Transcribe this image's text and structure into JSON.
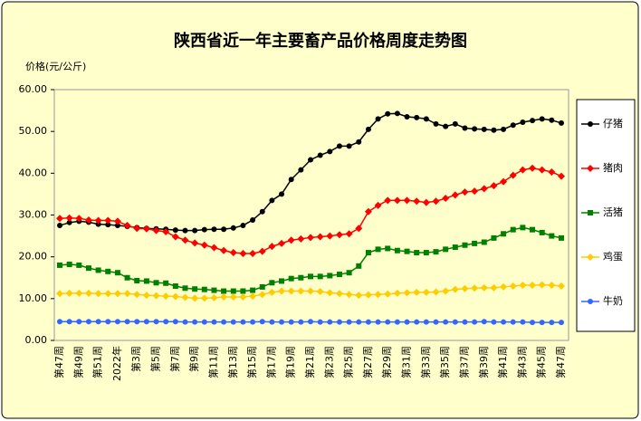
{
  "chart_data": {
    "type": "line",
    "title": "陕西省近一年主要畜产品价格周度走势图",
    "y_label": "价格(元/公斤)",
    "categories": [
      "第47周",
      null,
      "第49周",
      null,
      "第51周",
      null,
      "2022年",
      null,
      "第3周",
      null,
      "第5周",
      null,
      "第7周",
      null,
      "第9周",
      null,
      "第11周",
      null,
      "第13周",
      null,
      "第15周",
      null,
      "第17周",
      null,
      "第19周",
      null,
      "第21周",
      null,
      "第23周",
      null,
      "第25周",
      null,
      "第27周",
      null,
      "第29周",
      null,
      "第31周",
      null,
      "第33周",
      null,
      "第35周",
      null,
      "第37周",
      null,
      "第39周",
      null,
      "第41周",
      null,
      "第43周",
      null,
      "第45周",
      null,
      "第47周"
    ],
    "ylim": [
      0,
      60
    ],
    "yticks": [
      {
        "value": 0,
        "label": "0.00"
      },
      {
        "value": 10,
        "label": "10.00"
      },
      {
        "value": 20,
        "label": "20.00"
      },
      {
        "value": 30,
        "label": "30.00"
      },
      {
        "value": 40,
        "label": "40.00"
      },
      {
        "value": 50,
        "label": "50.00"
      },
      {
        "value": 60,
        "label": "60.00"
      }
    ],
    "grid": false,
    "legend": "right",
    "series": [
      {
        "name": "仔猪",
        "color": "#000000",
        "marker": "circle",
        "values": [
          27.5,
          28.2,
          28.5,
          28.3,
          27.8,
          27.7,
          27.5,
          27.3,
          27.0,
          26.8,
          26.7,
          26.6,
          26.4,
          26.3,
          26.3,
          26.5,
          26.6,
          26.6,
          26.9,
          27.5,
          28.8,
          30.8,
          33.5,
          35.0,
          38.5,
          40.8,
          43.2,
          44.3,
          45.2,
          46.5,
          46.5,
          47.5,
          50.5,
          53.0,
          54.2,
          54.3,
          53.5,
          53.3,
          53.0,
          51.8,
          51.2,
          51.8,
          50.8,
          50.6,
          50.5,
          50.3,
          50.5,
          51.5,
          52.2,
          52.6,
          53.0,
          52.7,
          52.0
        ]
      },
      {
        "name": "猪肉",
        "color": "#ff0000",
        "marker": "diamond",
        "values": [
          29.2,
          29.3,
          29.2,
          28.8,
          28.7,
          28.7,
          28.5,
          27.5,
          26.8,
          26.7,
          26.3,
          26.0,
          24.8,
          24.0,
          23.3,
          22.8,
          22.2,
          21.5,
          21.0,
          20.8,
          20.8,
          21.3,
          22.5,
          23.2,
          24.0,
          24.3,
          24.6,
          24.8,
          25.0,
          25.3,
          25.5,
          26.8,
          30.8,
          32.3,
          33.5,
          33.5,
          33.5,
          33.3,
          33.0,
          33.3,
          34.0,
          34.8,
          35.5,
          35.7,
          36.3,
          37.0,
          38.0,
          39.5,
          40.8,
          41.2,
          40.8,
          40.3,
          39.3
        ]
      },
      {
        "name": "活猪",
        "color": "#008000",
        "marker": "square",
        "values": [
          18.0,
          18.2,
          18.0,
          17.3,
          16.8,
          16.5,
          16.2,
          15.0,
          14.3,
          14.2,
          13.8,
          13.7,
          13.0,
          12.5,
          12.3,
          12.2,
          12.0,
          11.8,
          11.8,
          11.8,
          12.0,
          12.8,
          13.8,
          14.2,
          14.8,
          15.0,
          15.3,
          15.3,
          15.5,
          15.8,
          16.2,
          17.8,
          21.0,
          21.8,
          22.0,
          21.5,
          21.3,
          21.0,
          21.0,
          21.2,
          21.8,
          22.3,
          22.8,
          23.2,
          23.5,
          24.5,
          25.5,
          26.5,
          27.0,
          26.5,
          25.8,
          25.0,
          24.5
        ]
      },
      {
        "name": "鸡蛋",
        "color": "#ffcc00",
        "marker": "diamond",
        "values": [
          11.2,
          11.3,
          11.3,
          11.3,
          11.2,
          11.2,
          11.2,
          11.2,
          11.0,
          10.8,
          10.7,
          10.6,
          10.5,
          10.3,
          10.1,
          10.1,
          10.2,
          10.4,
          10.4,
          10.4,
          10.6,
          11.0,
          11.5,
          11.8,
          11.8,
          11.8,
          11.8,
          11.7,
          11.4,
          11.2,
          11.0,
          10.8,
          10.9,
          11.0,
          11.1,
          11.3,
          11.4,
          11.5,
          11.5,
          11.6,
          11.8,
          12.2,
          12.4,
          12.5,
          12.6,
          12.6,
          12.8,
          13.0,
          13.2,
          13.2,
          13.3,
          13.2,
          13.0
        ]
      },
      {
        "name": "牛奶",
        "color": "#3366ff",
        "marker": "circle",
        "values": [
          4.5,
          4.5,
          4.5,
          4.5,
          4.5,
          4.5,
          4.5,
          4.5,
          4.5,
          4.5,
          4.5,
          4.5,
          4.5,
          4.4,
          4.4,
          4.4,
          4.4,
          4.4,
          4.4,
          4.4,
          4.4,
          4.5,
          4.4,
          4.4,
          4.4,
          4.4,
          4.5,
          4.4,
          4.4,
          4.4,
          4.4,
          4.4,
          4.4,
          4.4,
          4.4,
          4.4,
          4.4,
          4.4,
          4.4,
          4.4,
          4.4,
          4.4,
          4.4,
          4.4,
          4.5,
          4.4,
          4.4,
          4.4,
          4.4,
          4.3,
          4.3,
          4.3,
          4.3
        ]
      }
    ]
  }
}
